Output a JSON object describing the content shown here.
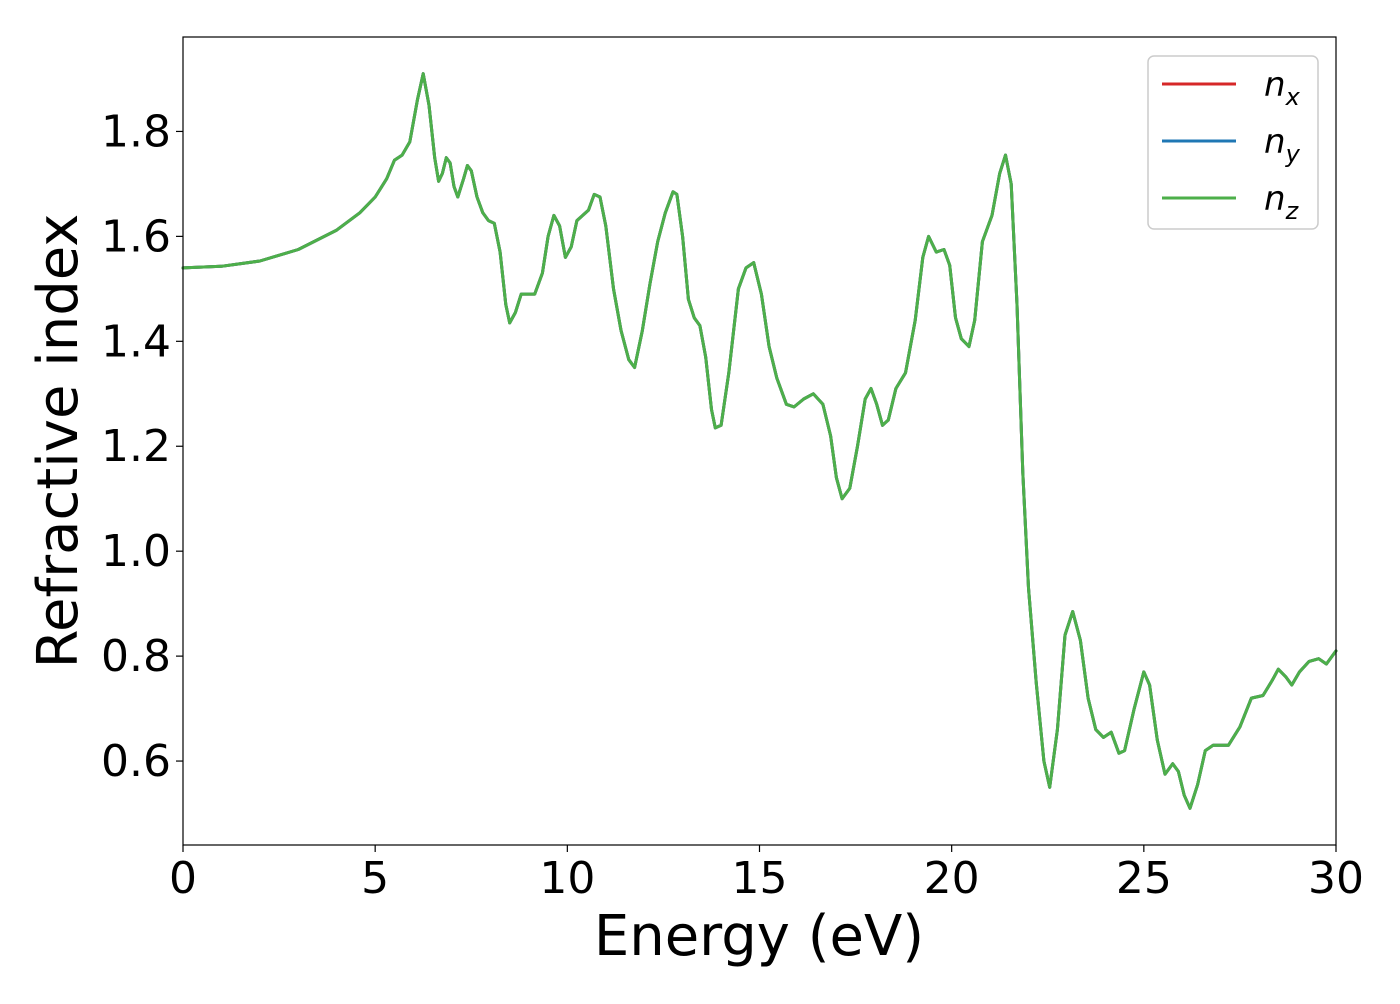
{
  "chart_data": {
    "type": "line",
    "title": "",
    "xlabel": "Energy (eV)",
    "ylabel": "Refractive index",
    "xlim": [
      0,
      30
    ],
    "ylim": [
      0.44,
      1.98
    ],
    "xticks": [
      0,
      5,
      10,
      15,
      20,
      25,
      30
    ],
    "yticks": [
      0.6,
      0.8,
      1.0,
      1.2,
      1.4,
      1.6,
      1.8
    ],
    "ytick_labels": [
      "0.6",
      "0.8",
      "1.0",
      "1.2",
      "1.4",
      "1.6",
      "1.8"
    ],
    "grid": false,
    "legend_position": "top-right",
    "series": [
      {
        "name": "n",
        "subscript": "x",
        "color": "#d62728"
      },
      {
        "name": "n",
        "subscript": "y",
        "color": "#1f77b4"
      },
      {
        "name": "n",
        "subscript": "z",
        "color": "#4daf4a"
      }
    ],
    "points": [
      [
        0.0,
        1.54
      ],
      [
        1.0,
        1.543
      ],
      [
        2.0,
        1.553
      ],
      [
        3.0,
        1.575
      ],
      [
        4.0,
        1.612
      ],
      [
        4.6,
        1.645
      ],
      [
        5.0,
        1.675
      ],
      [
        5.3,
        1.71
      ],
      [
        5.5,
        1.745
      ],
      [
        5.7,
        1.755
      ],
      [
        5.9,
        1.78
      ],
      [
        6.1,
        1.86
      ],
      [
        6.25,
        1.91
      ],
      [
        6.4,
        1.85
      ],
      [
        6.55,
        1.75
      ],
      [
        6.65,
        1.705
      ],
      [
        6.75,
        1.72
      ],
      [
        6.85,
        1.75
      ],
      [
        6.95,
        1.74
      ],
      [
        7.05,
        1.695
      ],
      [
        7.15,
        1.675
      ],
      [
        7.3,
        1.71
      ],
      [
        7.4,
        1.735
      ],
      [
        7.5,
        1.725
      ],
      [
        7.65,
        1.675
      ],
      [
        7.8,
        1.645
      ],
      [
        7.95,
        1.63
      ],
      [
        8.1,
        1.625
      ],
      [
        8.25,
        1.57
      ],
      [
        8.4,
        1.47
      ],
      [
        8.5,
        1.435
      ],
      [
        8.65,
        1.455
      ],
      [
        8.8,
        1.49
      ],
      [
        8.95,
        1.49
      ],
      [
        9.15,
        1.49
      ],
      [
        9.35,
        1.53
      ],
      [
        9.5,
        1.6
      ],
      [
        9.65,
        1.64
      ],
      [
        9.8,
        1.62
      ],
      [
        9.95,
        1.56
      ],
      [
        10.1,
        1.58
      ],
      [
        10.25,
        1.63
      ],
      [
        10.4,
        1.64
      ],
      [
        10.55,
        1.65
      ],
      [
        10.7,
        1.68
      ],
      [
        10.85,
        1.675
      ],
      [
        11.0,
        1.62
      ],
      [
        11.2,
        1.5
      ],
      [
        11.4,
        1.42
      ],
      [
        11.6,
        1.365
      ],
      [
        11.75,
        1.35
      ],
      [
        11.95,
        1.42
      ],
      [
        12.15,
        1.51
      ],
      [
        12.35,
        1.59
      ],
      [
        12.55,
        1.645
      ],
      [
        12.75,
        1.685
      ],
      [
        12.85,
        1.68
      ],
      [
        13.0,
        1.6
      ],
      [
        13.15,
        1.48
      ],
      [
        13.3,
        1.445
      ],
      [
        13.45,
        1.43
      ],
      [
        13.6,
        1.37
      ],
      [
        13.75,
        1.27
      ],
      [
        13.85,
        1.235
      ],
      [
        14.0,
        1.24
      ],
      [
        14.2,
        1.34
      ],
      [
        14.45,
        1.5
      ],
      [
        14.65,
        1.54
      ],
      [
        14.85,
        1.55
      ],
      [
        15.05,
        1.49
      ],
      [
        15.25,
        1.39
      ],
      [
        15.45,
        1.33
      ],
      [
        15.7,
        1.28
      ],
      [
        15.9,
        1.275
      ],
      [
        16.15,
        1.29
      ],
      [
        16.4,
        1.3
      ],
      [
        16.65,
        1.28
      ],
      [
        16.85,
        1.22
      ],
      [
        17.0,
        1.14
      ],
      [
        17.15,
        1.1
      ],
      [
        17.35,
        1.12
      ],
      [
        17.55,
        1.2
      ],
      [
        17.75,
        1.29
      ],
      [
        17.9,
        1.31
      ],
      [
        18.05,
        1.28
      ],
      [
        18.2,
        1.24
      ],
      [
        18.35,
        1.25
      ],
      [
        18.55,
        1.31
      ],
      [
        18.8,
        1.34
      ],
      [
        19.05,
        1.44
      ],
      [
        19.25,
        1.56
      ],
      [
        19.4,
        1.6
      ],
      [
        19.6,
        1.57
      ],
      [
        19.8,
        1.575
      ],
      [
        19.95,
        1.545
      ],
      [
        20.1,
        1.445
      ],
      [
        20.25,
        1.405
      ],
      [
        20.45,
        1.39
      ],
      [
        20.6,
        1.44
      ],
      [
        20.8,
        1.59
      ],
      [
        21.05,
        1.64
      ],
      [
        21.25,
        1.72
      ],
      [
        21.4,
        1.755
      ],
      [
        21.55,
        1.7
      ],
      [
        21.7,
        1.47
      ],
      [
        21.85,
        1.15
      ],
      [
        22.0,
        0.93
      ],
      [
        22.2,
        0.75
      ],
      [
        22.4,
        0.6
      ],
      [
        22.55,
        0.55
      ],
      [
        22.75,
        0.66
      ],
      [
        22.95,
        0.84
      ],
      [
        23.15,
        0.885
      ],
      [
        23.35,
        0.83
      ],
      [
        23.55,
        0.72
      ],
      [
        23.75,
        0.66
      ],
      [
        23.95,
        0.645
      ],
      [
        24.15,
        0.655
      ],
      [
        24.35,
        0.615
      ],
      [
        24.5,
        0.62
      ],
      [
        24.75,
        0.7
      ],
      [
        25.0,
        0.77
      ],
      [
        25.15,
        0.745
      ],
      [
        25.35,
        0.64
      ],
      [
        25.55,
        0.575
      ],
      [
        25.75,
        0.595
      ],
      [
        25.9,
        0.58
      ],
      [
        26.05,
        0.535
      ],
      [
        26.2,
        0.51
      ],
      [
        26.4,
        0.555
      ],
      [
        26.6,
        0.62
      ],
      [
        26.8,
        0.63
      ],
      [
        27.0,
        0.63
      ],
      [
        27.2,
        0.63
      ],
      [
        27.5,
        0.665
      ],
      [
        27.8,
        0.72
      ],
      [
        28.1,
        0.725
      ],
      [
        28.35,
        0.755
      ],
      [
        28.5,
        0.775
      ],
      [
        28.7,
        0.76
      ],
      [
        28.85,
        0.745
      ],
      [
        29.05,
        0.77
      ],
      [
        29.3,
        0.79
      ],
      [
        29.55,
        0.795
      ],
      [
        29.75,
        0.785
      ],
      [
        30.0,
        0.81
      ]
    ]
  }
}
